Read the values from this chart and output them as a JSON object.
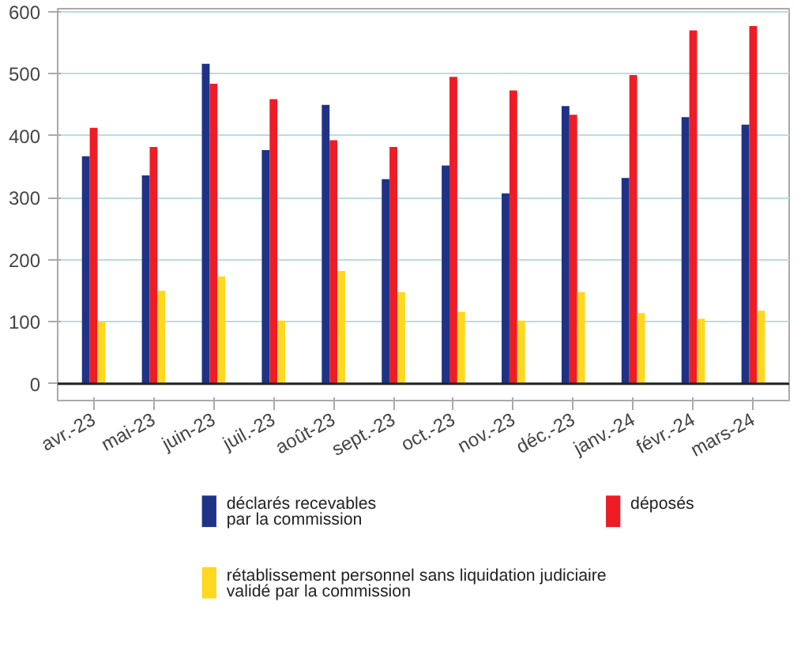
{
  "chart_data": {
    "type": "bar",
    "categories": [
      "avr.-23",
      "mai-23",
      "juin-23",
      "juil.-23",
      "août-23",
      "sept.-23",
      "oct.-23",
      "nov.-23",
      "déc.-23",
      "janv.-24",
      "févr.-24",
      "mars-24"
    ],
    "series": [
      {
        "name": "déclarés recevables par la commission",
        "color": "#1f3285",
        "values": [
          367,
          336,
          516,
          377,
          450,
          330,
          352,
          307,
          448,
          332,
          430,
          418
        ]
      },
      {
        "name": "déposés",
        "color": "#ee1c25",
        "values": [
          413,
          382,
          484,
          459,
          393,
          382,
          495,
          473,
          434,
          498,
          570,
          577
        ]
      },
      {
        "name": "rétablissement personnel sans liquidation judiciaire validé par la commission",
        "color": "#fed821",
        "values": [
          100,
          150,
          173,
          102,
          182,
          148,
          116,
          102,
          148,
          114,
          105,
          118
        ]
      }
    ],
    "ylim": [
      -27,
      605
    ],
    "yticks": [
      0,
      100,
      200,
      300,
      400,
      500,
      600
    ],
    "grid": "y",
    "legend": "bottom",
    "ref_lines": [
      {
        "axis": "y",
        "value": 0,
        "color": "#222222"
      }
    ]
  }
}
